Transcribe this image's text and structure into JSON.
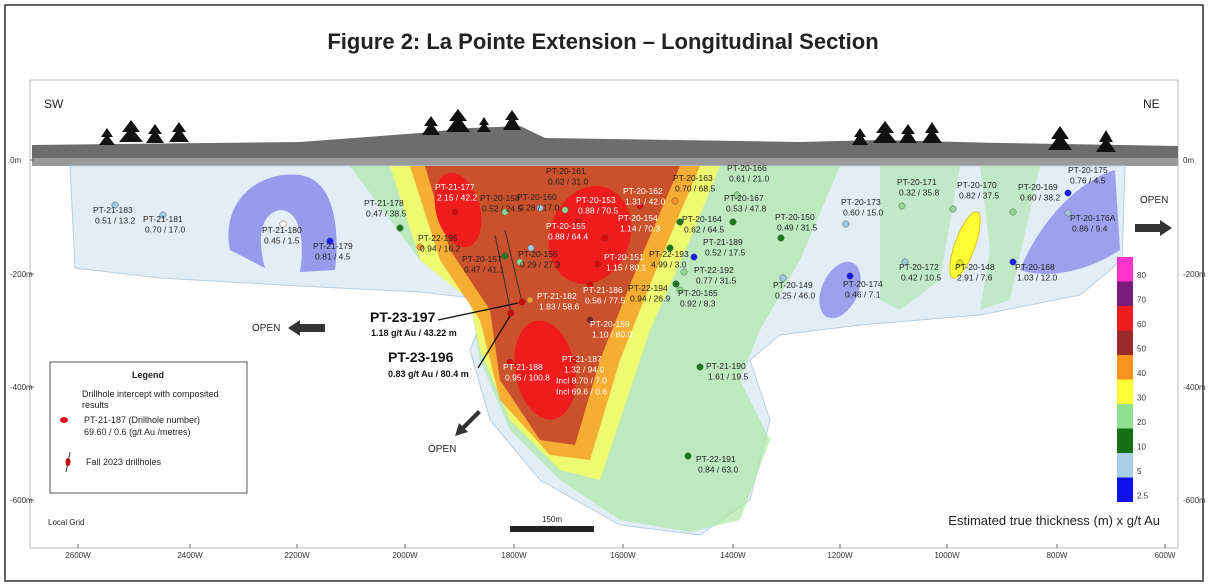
{
  "title": "Figure 2: La Pointe Extension – Longitudinal Section",
  "direction_left": "SW",
  "direction_right": "NE",
  "open_labels": [
    "OPEN",
    "OPEN",
    "OPEN"
  ],
  "depth_labels": [
    "0m",
    "-200m",
    "-400m",
    "-600m"
  ],
  "easting_labels": [
    "2600W",
    "2400W",
    "2200W",
    "2000W",
    "1800W",
    "1600W",
    "1400W",
    "1200W",
    "1000W",
    "800W",
    "600W"
  ],
  "grid_label": "Local Grid",
  "scale_bar": "150m",
  "color_scale": {
    "title": "Estimated true thickness (m) x g/t Au",
    "steps": [
      {
        "value": 80,
        "color": "#ff33cc"
      },
      {
        "value": 70,
        "color": "#7a1a7a"
      },
      {
        "value": 60,
        "color": "#ee1c1c"
      },
      {
        "value": 50,
        "color": "#9a2a2a"
      },
      {
        "value": 40,
        "color": "#f7931e"
      },
      {
        "value": 30,
        "color": "#ffff33"
      },
      {
        "value": 20,
        "color": "#90e090"
      },
      {
        "value": 10,
        "color": "#157015"
      },
      {
        "value": 5,
        "color": "#a9cfe6"
      },
      {
        "value": 2.5,
        "color": "#1010ee"
      }
    ]
  },
  "legend": {
    "title": "Legend",
    "intercept_text": "Drillhole intercept with composited results",
    "intercept_example_name": "PT-21-187 (Drillhole number)",
    "intercept_example_result": "69.60 / 0.6 (g/t Au /metres)",
    "fall_text": "Fall 2023 drillholes"
  },
  "highlights": [
    {
      "name": "PT-23-197",
      "result": "1.18 g/t Au / 43.22 m"
    },
    {
      "name": "PT-23-196",
      "result": "0.83 g/t Au / 80.4 m"
    }
  ],
  "drillholes": [
    {
      "name": "PT-21-183",
      "result": "0.51 / 13.2",
      "dot_color": "#9ecae1"
    },
    {
      "name": "PT-21-181",
      "result": "0.70 / 17.0",
      "dot_color": "#9ecae1"
    },
    {
      "name": "PT-21-180",
      "result": "0.45 / 1.5",
      "dot_color": "#ffffff"
    },
    {
      "name": "PT-21-179",
      "result": "0.81 / 4.5",
      "dot_color": "#1a1aff"
    },
    {
      "name": "PT-21-178",
      "result": "0.47 / 38.5",
      "dot_color": "#1a7a1a"
    },
    {
      "name": "PT-21-177",
      "result": "2.15 / 42.2",
      "dot_color": "#e00000"
    },
    {
      "name": "PT-22-195",
      "result": "0.94 / 16.2",
      "dot_color": "#f0a030"
    },
    {
      "name": "PT-20-158",
      "result": "0.52 / 24.5",
      "dot_color": "#90d890"
    },
    {
      "name": "PT-20-160",
      "result": "0.28 / 17.0",
      "dot_color": "#9ecae1"
    },
    {
      "name": "PT-20-161",
      "result": "0.62 / 31.0",
      "dot_color": "#90d890"
    },
    {
      "name": "PT-20-153",
      "result": "0.88 / 70.5",
      "dot_color": "#e00000"
    },
    {
      "name": "PT-20-162",
      "result": "1.31 / 42.0",
      "dot_color": "#e00000"
    },
    {
      "name": "PT-20-155",
      "result": "0.88 / 64.4",
      "dot_color": "#9ecae1"
    },
    {
      "name": "PT-20-154",
      "result": "1.14 / 70.3",
      "dot_color": "#e00000"
    },
    {
      "name": "PT-20-157",
      "result": "0.47 / 41.1",
      "dot_color": "#1a7a1a"
    },
    {
      "name": "PT-20-156",
      "result": "0.29 / 27.3",
      "dot_color": "#90d890"
    },
    {
      "name": "PT-20-151",
      "result": "1.15 / 80.1",
      "dot_color": "#e00000"
    },
    {
      "name": "PT-20-163",
      "result": "0.70 / 68.5",
      "dot_color": "#f09020"
    },
    {
      "name": "PT-20-166",
      "result": "0.61 / 21.0",
      "dot_color": "#90d890"
    },
    {
      "name": "PT-20-167",
      "result": "0.53 / 47.8",
      "dot_color": "#1a7a1a"
    },
    {
      "name": "PT-20-164",
      "result": "0.62 / 64.5",
      "dot_color": "#1a7a1a"
    },
    {
      "name": "PT-22-193",
      "result": "4.99 / 3.0",
      "dot_color": "#1a7a1a"
    },
    {
      "name": "PT-21-189",
      "result": "0.52 / 17.5",
      "dot_color": "#1a1aff"
    },
    {
      "name": "PT-22-192",
      "result": "0.77 / 31.5",
      "dot_color": "#90d890"
    },
    {
      "name": "PT-22-194",
      "result": "0.94 / 26.9",
      "dot_color": "#1a7a1a"
    },
    {
      "name": "PT-20-165",
      "result": "0.92 / 8.3",
      "dot_color": "#90d890"
    },
    {
      "name": "PT-21-186",
      "result": "0.56 / 77.5",
      "dot_color": "#e00000"
    },
    {
      "name": "PT-21-182",
      "result": "1.83 / 58.6",
      "dot_color": "#f0a030"
    },
    {
      "name": "PT-20-159",
      "result": "1.10 / 80.0",
      "dot_color": "#8b2020"
    },
    {
      "name": "PT-21-188",
      "result": "0.95 / 100.8",
      "dot_color": "#e00000"
    },
    {
      "name": "PT-21-187",
      "result": "1.32 / 94.0",
      "incl": [
        "Incl  8.70 / 7.0",
        "Incl  69.6 / 0.6"
      ],
      "dot_color": "#e00000"
    },
    {
      "name": "PT-21-190",
      "result": "1.61 / 19.5",
      "dot_color": "#1a7a1a"
    },
    {
      "name": "PT-22-191",
      "result": "0.84 / 63.0",
      "dot_color": "#1a7a1a"
    },
    {
      "name": "PT-20-150",
      "result": "0.49 / 31.5",
      "dot_color": "#1a7a1a"
    },
    {
      "name": "PT-20-173",
      "result": "0.60 / 15.0",
      "dot_color": "#9ecae1"
    },
    {
      "name": "PT-20-149",
      "result": "0.25 / 46.0",
      "dot_color": "#9ecae1"
    },
    {
      "name": "PT-20-174",
      "result": "0.46 / 7.1",
      "dot_color": "#1a1aff"
    },
    {
      "name": "PT-20-171",
      "result": "0.32 / 35.8",
      "dot_color": "#90d890"
    },
    {
      "name": "PT-20-170",
      "result": "0.82 / 37.5",
      "dot_color": "#90d890"
    },
    {
      "name": "PT-20-169",
      "result": "0.60 / 38.2",
      "dot_color": "#90d890"
    },
    {
      "name": "PT-20-175",
      "result": "0.76 / 4.5",
      "dot_color": "#1a1aff"
    },
    {
      "name": "PT-20-176A",
      "result": "0.86 / 9.4",
      "dot_color": "#9ecae1"
    },
    {
      "name": "PT-20-172",
      "result": "0.42 / 10.5",
      "dot_color": "#9ecae1"
    },
    {
      "name": "PT-20-148",
      "result": "2.91 / 7.6",
      "dot_color": "#f0e020"
    },
    {
      "name": "PT-20-168",
      "result": "1.03 / 12.0",
      "dot_color": "#1a1aff"
    }
  ]
}
